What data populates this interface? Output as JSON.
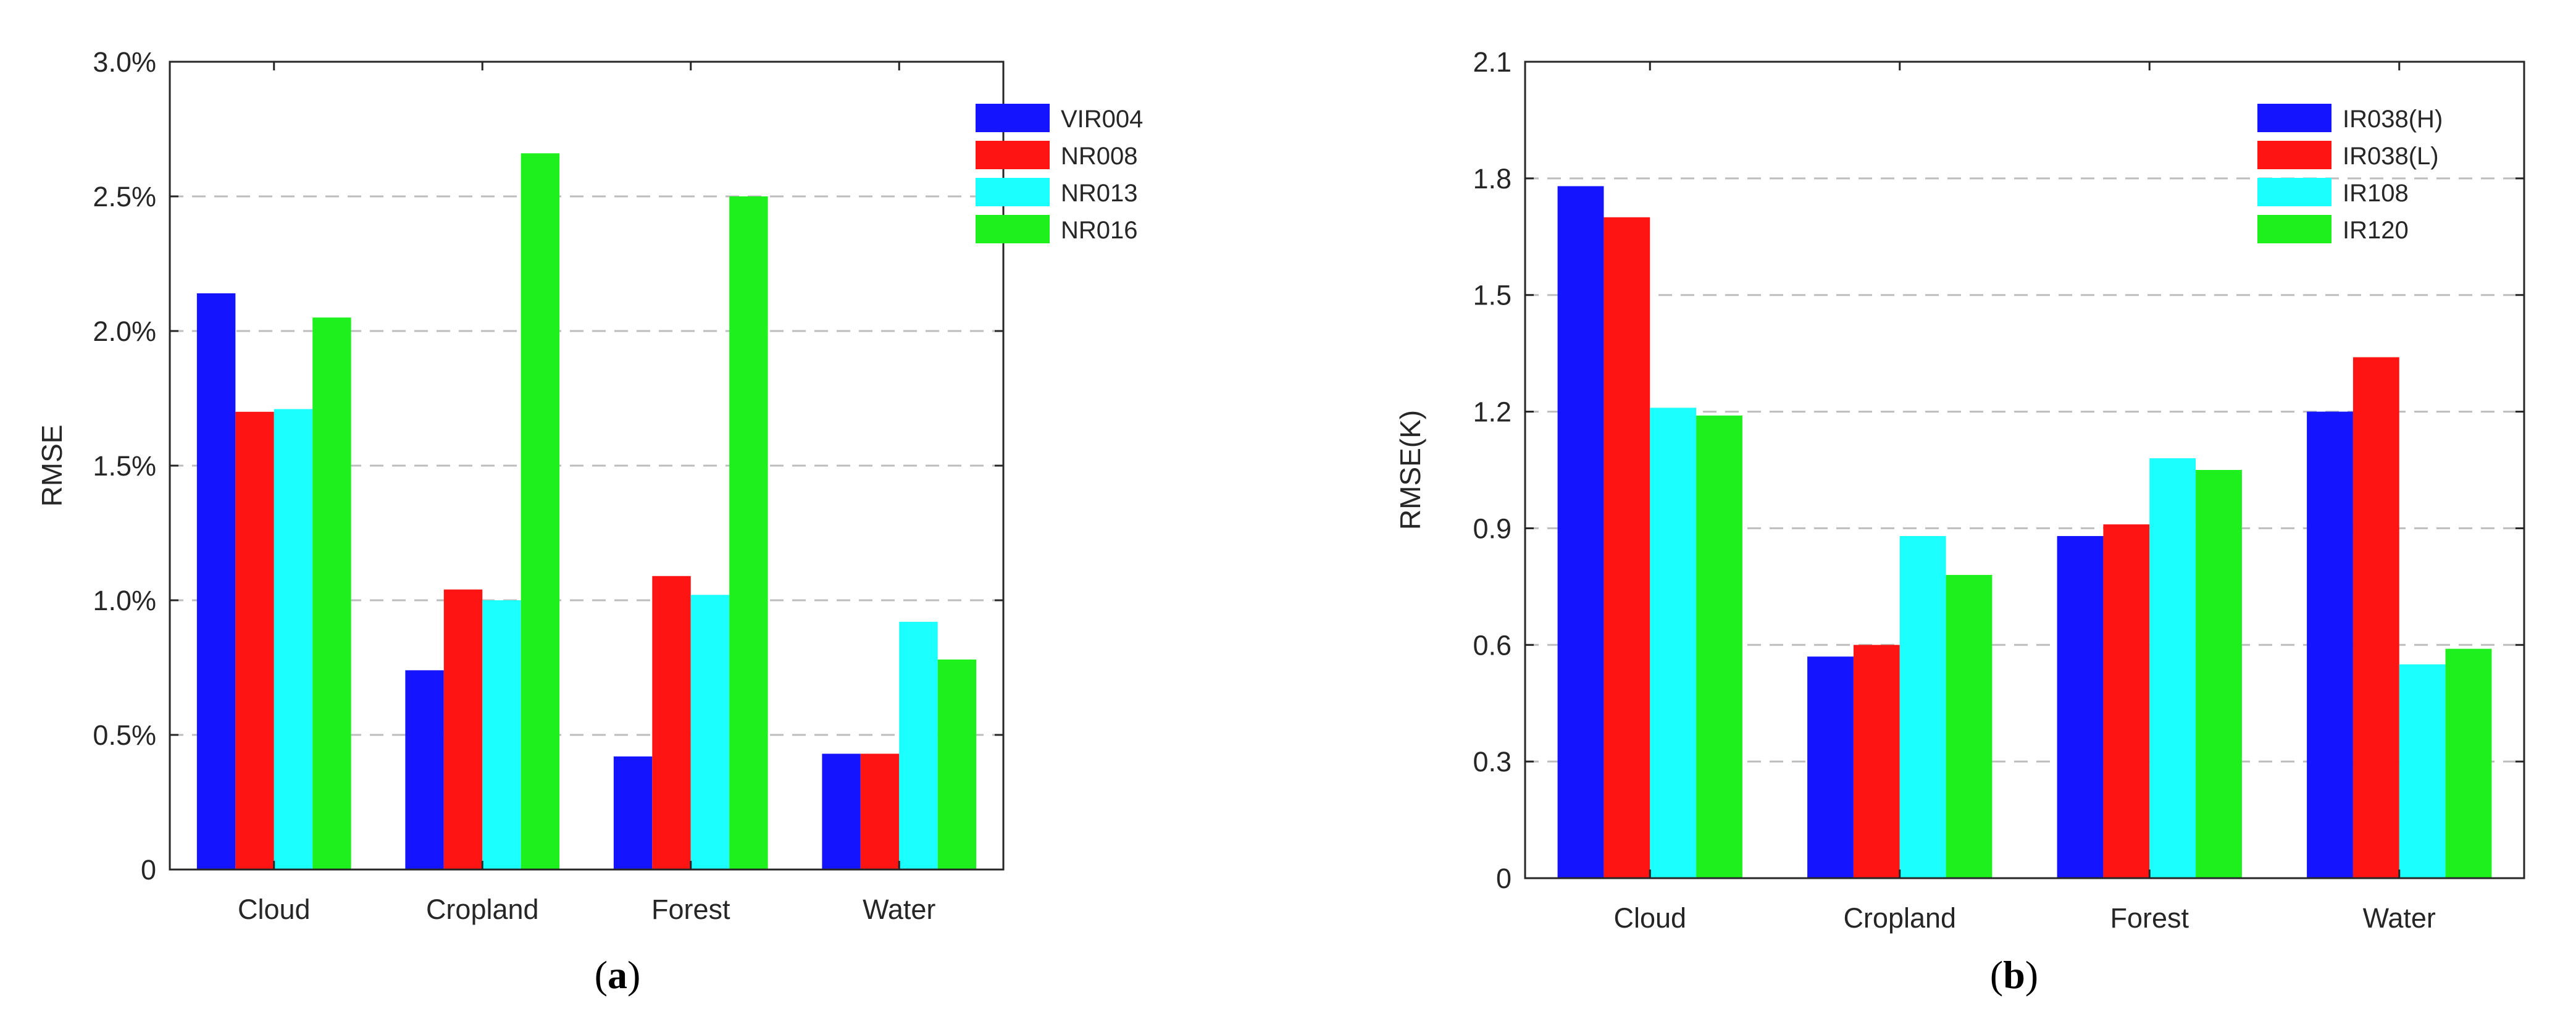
{
  "chart_data": [
    {
      "type": "bar",
      "panel_label_open": "(",
      "panel_label": "a",
      "panel_label_close": ")",
      "ylabel": "RMSE",
      "xlabel": "",
      "ylim": [
        0,
        0.03
      ],
      "ytick_values": [
        0,
        0.005,
        0.01,
        0.015,
        0.02,
        0.025,
        0.03
      ],
      "ytick_labels": [
        "0",
        "0.5%",
        "1.0%",
        "1.5%",
        "2.0%",
        "2.5%",
        "3.0%"
      ],
      "grid": "horizontal dashed",
      "legend_position": "top-right",
      "categories": [
        "Cloud",
        "Cropland",
        "Forest",
        "Water"
      ],
      "series": [
        {
          "name": "VIR004",
          "color": "#1414FF",
          "values": [
            0.0214,
            0.0074,
            0.0042,
            0.0043
          ]
        },
        {
          "name": "NR008",
          "color": "#FF1414",
          "values": [
            0.017,
            0.0104,
            0.0109,
            0.0043
          ]
        },
        {
          "name": "NR013",
          "color": "#1CFFFF",
          "values": [
            0.0171,
            0.01,
            0.0102,
            0.0092
          ]
        },
        {
          "name": "NR016",
          "color": "#1EF01E",
          "values": [
            0.0205,
            0.0266,
            0.025,
            0.0078
          ]
        }
      ]
    },
    {
      "type": "bar",
      "panel_label_open": "(",
      "panel_label": "b",
      "panel_label_close": ")",
      "ylabel": "RMSE(K)",
      "xlabel": "",
      "ylim": [
        0,
        2.1
      ],
      "ytick_values": [
        0,
        0.3,
        0.6,
        0.9,
        1.2,
        1.5,
        1.8,
        2.1
      ],
      "ytick_labels": [
        "0",
        "0.3",
        "0.6",
        "0.9",
        "1.2",
        "1.5",
        "1.8",
        "2.1"
      ],
      "grid": "horizontal dashed",
      "legend_position": "top-right",
      "categories": [
        "Cloud",
        "Cropland",
        "Forest",
        "Water"
      ],
      "series": [
        {
          "name": "IR038(H)",
          "color": "#1414FF",
          "values": [
            1.78,
            0.57,
            0.88,
            1.2
          ]
        },
        {
          "name": "IR038(L)",
          "color": "#FF1414",
          "values": [
            1.7,
            0.6,
            0.91,
            1.34
          ]
        },
        {
          "name": "IR108",
          "color": "#1CFFFF",
          "values": [
            1.21,
            0.88,
            1.08,
            0.55
          ]
        },
        {
          "name": "IR120",
          "color": "#1EF01E",
          "values": [
            1.19,
            0.78,
            1.05,
            0.59
          ]
        }
      ]
    }
  ]
}
